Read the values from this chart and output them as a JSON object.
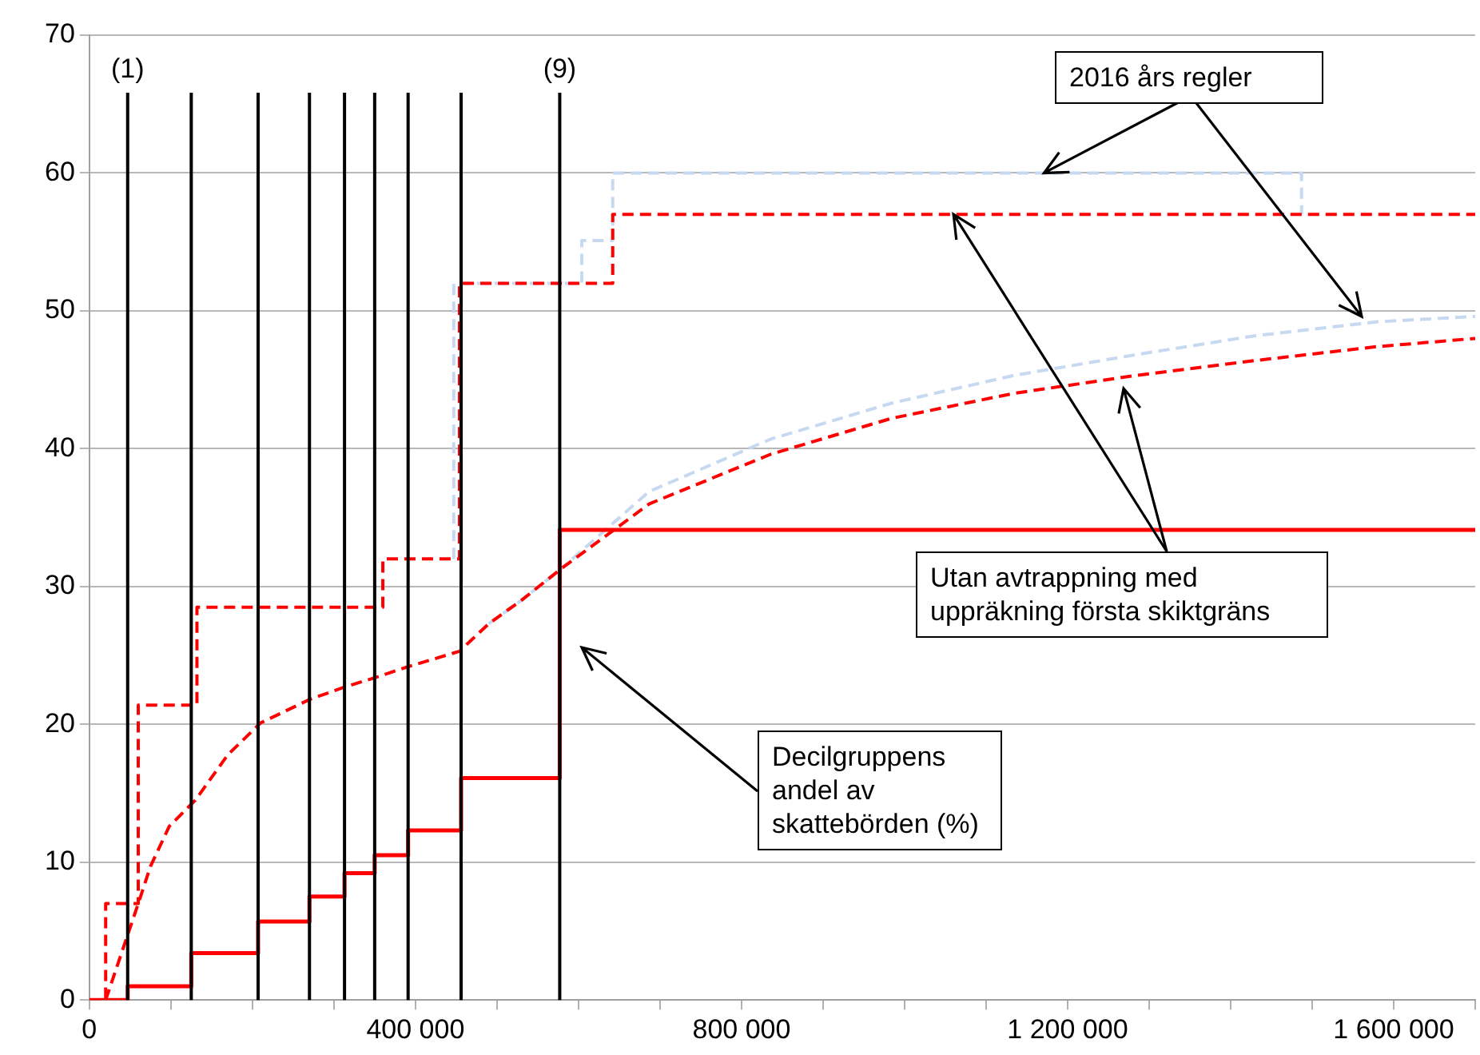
{
  "chart_data": {
    "type": "line",
    "xlim": [
      0,
      1700000
    ],
    "xticks": [
      0,
      {
        "value": 100000,
        "label": null
      },
      {
        "value": 200000,
        "label": null
      },
      {
        "value": 300000,
        "label": null
      },
      {
        "value": 400000,
        "label": "400 000"
      },
      {
        "value": 500000,
        "label": null
      },
      {
        "value": 600000,
        "label": null
      },
      {
        "value": 700000,
        "label": null
      },
      {
        "value": 800000,
        "label": "800 000"
      },
      {
        "value": 900000,
        "label": null
      },
      {
        "value": 1000000,
        "label": null
      },
      {
        "value": 1100000,
        "label": null
      },
      {
        "value": 1200000,
        "label": "1 200 000"
      },
      {
        "value": 1300000,
        "label": null
      },
      {
        "value": 1400000,
        "label": null
      },
      {
        "value": 1500000,
        "label": null
      },
      {
        "value": 1600000,
        "label": "1 600 000"
      },
      {
        "value": 1700000,
        "label": null
      }
    ],
    "ylim": [
      0,
      70
    ],
    "yticks": [
      0,
      10,
      20,
      30,
      40,
      50,
      60,
      70
    ],
    "grid": "y",
    "legend": false,
    "marker": "none",
    "series": [
      {
        "type": "step",
        "color": "#c6d9f1",
        "line_style": "dashed",
        "x": [
          447000,
          447000,
          604000,
          642000,
          1487000
        ],
        "values": [
          32.0,
          52.0,
          55.1,
          60.0,
          57.0
        ]
      },
      {
        "type": "line",
        "color": "#c6d9f1",
        "line_style": "dashed",
        "x": [
          490000,
          530000,
          579000,
          687000,
          836000,
          984000,
          1133000,
          1282000,
          1431000,
          1579000,
          1700000
        ],
        "values": [
          27.3,
          29.0,
          31.3,
          36.9,
          40.7,
          43.3,
          45.3,
          46.8,
          48.2,
          49.2,
          49.6
        ]
      },
      {
        "type": "step",
        "color": "#ff0000",
        "line_style": "dashed",
        "x": [
          0,
          20000,
          60000,
          132000,
          360000,
          454000,
          642000,
          1700000
        ],
        "values": [
          0,
          7.0,
          21.4,
          28.5,
          32.0,
          52.0,
          57.0,
          57.0
        ]
      },
      {
        "type": "line",
        "color": "#ff0000",
        "line_style": "dashed",
        "x": [
          20000,
          60000,
          75000,
          98000,
          130000,
          170000,
          210000,
          270000,
          313000,
          351000,
          392000,
          454000,
          490000,
          530000,
          579000,
          687000,
          836000,
          984000,
          1133000,
          1282000,
          1431000,
          1579000,
          1700000
        ],
        "values": [
          0,
          7.0,
          9.7,
          12.6,
          14.5,
          17.8,
          20.1,
          21.8,
          22.7,
          23.4,
          24.2,
          25.3,
          27.3,
          29.0,
          31.3,
          36.0,
          39.6,
          42.2,
          44.0,
          45.3,
          46.4,
          47.4,
          48.0
        ]
      },
      {
        "type": "step",
        "color": "#ff0000",
        "line_style": "solid",
        "x": [
          0,
          47000,
          125000,
          207000,
          270000,
          313000,
          350000,
          391000,
          456000,
          577000,
          1700000
        ],
        "values": [
          0,
          1.0,
          3.4,
          5.7,
          7.5,
          9.2,
          10.5,
          12.3,
          16.1,
          34.1,
          34.1
        ]
      }
    ],
    "ref_lines": [
      {
        "axis": "x",
        "value": 47000,
        "color": "#000000"
      },
      {
        "axis": "x",
        "value": 125000,
        "color": "#000000"
      },
      {
        "axis": "x",
        "value": 207000,
        "color": "#000000"
      },
      {
        "axis": "x",
        "value": 270000,
        "color": "#000000"
      },
      {
        "axis": "x",
        "value": 313000,
        "color": "#000000"
      },
      {
        "axis": "x",
        "value": 350000,
        "color": "#000000"
      },
      {
        "axis": "x",
        "value": 391000,
        "color": "#000000"
      },
      {
        "axis": "x",
        "value": 456000,
        "color": "#000000"
      },
      {
        "axis": "x",
        "value": 577000,
        "color": "#000000"
      }
    ],
    "annotations": [
      {
        "text": "2016 års regler",
        "x": 1171000,
        "y": 60
      },
      {
        "text": "Utan avtrappning med uppräkning första skiktgräns",
        "x": 1060000,
        "y": 57
      },
      "Decilgruppens andel av skattebörden (%)",
      "(1)",
      "(9)"
    ]
  }
}
